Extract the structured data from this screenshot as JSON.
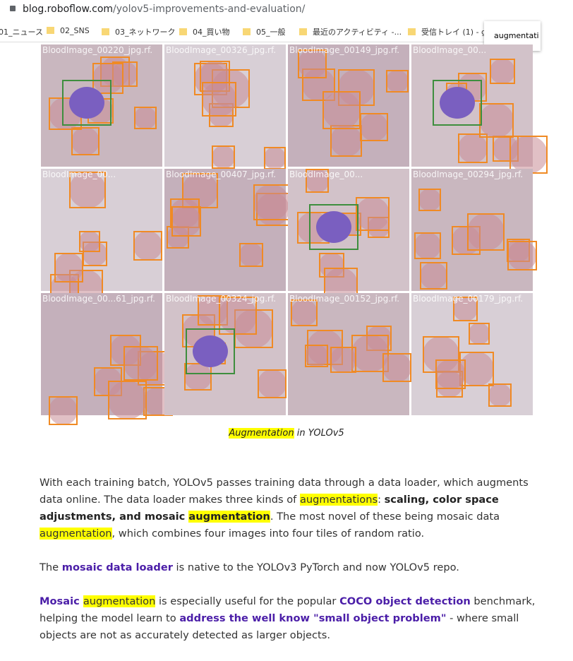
{
  "browser": {
    "url_host": "blog.roboflow.com",
    "url_path": "/yolov5-improvements-and-evaluation/",
    "bookmarks": [
      "01_ニュース",
      "02_SNS",
      "03_ネットワーク",
      "04_買い物",
      "05_一般",
      "最近のアクティビティ -...",
      "受信トレイ (1) - g"
    ],
    "popup": "augmentati"
  },
  "figure": {
    "tiles": [
      "BloodImage_00220_jpg.rf.",
      "BloodImage_00326_jpg.rf.",
      "BloodImage_00149_jpg.rf.",
      "BloodImage_00...",
      "BloodImage_00...",
      "BloodImage_00407_jpg.rf.",
      "BloodImage_00...",
      "BloodImage_00294_jpg.rf.",
      "BloodImage_00...61_jpg.rf.",
      "BloodImage_00324_jpg.rf.",
      "BloodImage_00152_jpg.rf.",
      "BloodImage_00179_jpg.rf."
    ],
    "caption": [
      {
        "text": "Augmentation",
        "styles": [
          "highlight"
        ]
      },
      {
        "text": " in YOLOv5",
        "styles": []
      }
    ]
  },
  "content": {
    "paragraphs": [
      {
        "runs": [
          {
            "text": "With each training batch, YOLOv5 passes training data through a data loader, which augments data online. The data loader makes three kinds of ",
            "styles": []
          },
          {
            "text": "augmentations",
            "styles": [
              "highlight"
            ]
          },
          {
            "text": ": ",
            "styles": []
          },
          {
            "text": "scaling, color space adjustments, and mosaic ",
            "styles": [
              "bold"
            ]
          },
          {
            "text": "augmentation",
            "styles": [
              "bold",
              "highlight"
            ]
          },
          {
            "text": ". The most novel of these being mosaic data ",
            "styles": []
          },
          {
            "text": "augmentation",
            "styles": [
              "highlight"
            ]
          },
          {
            "text": ", which combines four images into four tiles of random ratio.",
            "styles": []
          }
        ]
      },
      {
        "runs": [
          {
            "text": "The ",
            "styles": []
          },
          {
            "text": "mosaic data loader",
            "styles": [
              "link"
            ]
          },
          {
            "text": " is native to the YOLOv3 PyTorch and now YOLOv5 repo.",
            "styles": []
          }
        ]
      },
      {
        "runs": [
          {
            "text": "Mosaic ",
            "styles": [
              "link"
            ]
          },
          {
            "text": "augmentation",
            "styles": [
              "highlight"
            ]
          },
          {
            "text": " is especially useful for the popular ",
            "styles": []
          },
          {
            "text": "COCO object detection",
            "styles": [
              "link"
            ]
          },
          {
            "text": " benchmark, helping the model learn to ",
            "styles": []
          },
          {
            "text": "address the well know \"small object problem\"",
            "styles": [
              "link"
            ]
          },
          {
            "text": " - where small objects are not as accurately detected as larger objects.",
            "styles": []
          }
        ]
      }
    ]
  }
}
